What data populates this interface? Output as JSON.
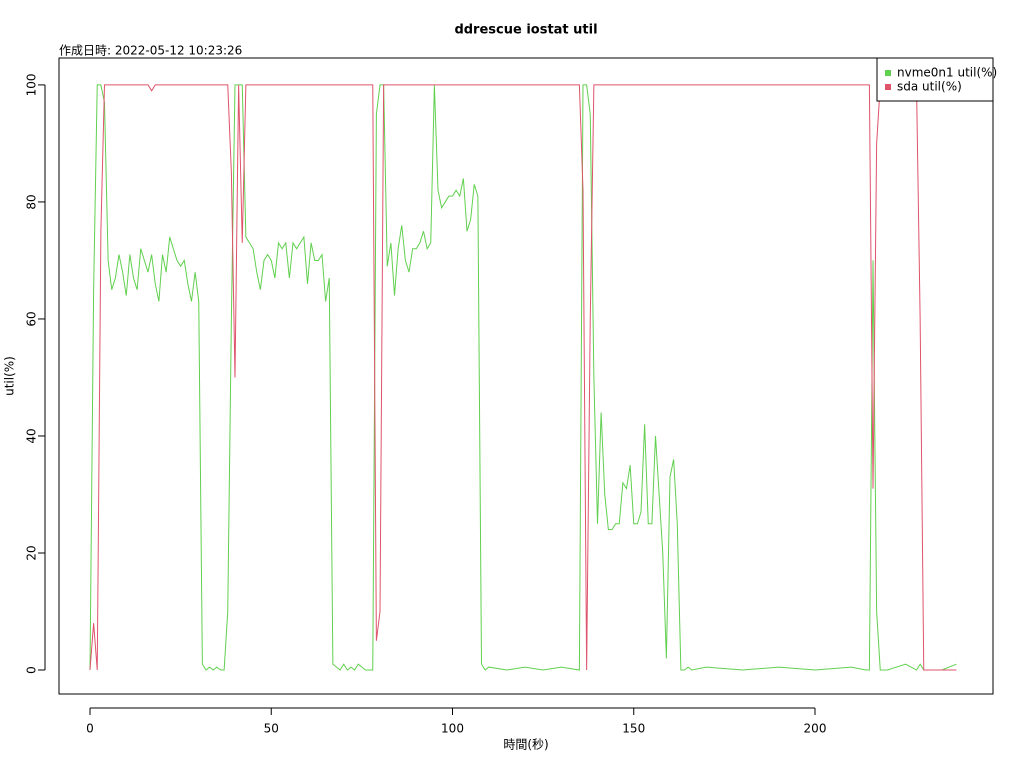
{
  "chart_data": {
    "type": "line",
    "title": "ddrescue iostat util",
    "subtitle": "作成日時: 2022-05-12 10:23:26",
    "x_label": "時間(秒)",
    "y_label": "util(%)",
    "xlim": [
      -8.55,
      249.1
    ],
    "ylim": [
      -4.1,
      104.6
    ],
    "xticks": [
      0,
      50,
      100,
      150,
      200
    ],
    "yticks": [
      0,
      20,
      40,
      60,
      80,
      100
    ],
    "grid": false,
    "legend": "topright",
    "x": [
      0,
      1,
      2,
      3,
      4,
      5,
      6,
      7,
      8,
      9,
      10,
      11,
      12,
      13,
      14,
      15,
      16,
      17,
      18,
      19,
      20,
      21,
      22,
      23,
      24,
      25,
      26,
      27,
      28,
      29,
      30,
      31,
      32,
      33,
      34,
      35,
      36,
      37,
      38,
      39,
      40,
      41,
      42,
      43,
      44,
      45,
      46,
      47,
      48,
      49,
      50,
      51,
      52,
      53,
      54,
      55,
      56,
      57,
      58,
      59,
      60,
      61,
      62,
      63,
      64,
      65,
      66,
      67,
      68,
      69,
      70,
      71,
      72,
      73,
      74,
      75,
      76,
      77,
      78,
      79,
      80,
      81,
      82,
      83,
      84,
      85,
      86,
      87,
      88,
      89,
      90,
      91,
      92,
      93,
      94,
      95,
      96,
      97,
      98,
      99,
      100,
      101,
      102,
      103,
      104,
      105,
      106,
      107,
      108,
      109,
      110,
      115,
      120,
      125,
      130,
      135,
      136,
      137,
      138,
      139,
      140,
      141,
      142,
      143,
      144,
      145,
      146,
      147,
      148,
      149,
      150,
      151,
      152,
      153,
      154,
      155,
      156,
      157,
      158,
      159,
      160,
      161,
      162,
      163,
      164,
      165,
      166,
      170,
      180,
      190,
      200,
      210,
      214,
      215,
      216,
      217,
      218,
      220,
      225,
      228,
      229,
      230,
      232,
      235,
      239
    ],
    "series": [
      {
        "name": "nvme0n1 util(%)",
        "color": "#61D04F",
        "values": [
          0,
          65,
          100,
          100,
          97,
          70,
          65,
          67,
          71,
          68,
          64,
          71,
          67,
          65,
          72,
          70,
          68,
          71,
          66,
          63,
          71,
          68,
          74,
          72,
          70,
          69,
          70,
          66,
          63,
          68,
          63,
          1,
          0,
          0.5,
          0,
          0.5,
          0,
          0,
          10,
          60,
          100,
          100,
          100,
          74,
          73,
          72,
          68,
          65,
          70,
          71,
          70,
          67,
          73,
          72,
          73,
          67,
          73,
          72,
          73,
          74,
          66,
          73,
          70,
          70,
          71,
          63,
          67,
          1,
          0.5,
          0,
          1,
          0,
          0.5,
          0,
          1,
          0.5,
          0,
          0,
          0,
          95,
          100,
          100,
          69,
          73,
          64,
          72,
          76,
          70,
          68,
          72,
          72,
          73,
          75,
          72,
          73,
          100,
          82,
          79,
          80,
          81,
          81,
          82,
          81,
          84,
          75,
          77,
          83,
          81,
          1,
          0,
          0.5,
          0,
          0.5,
          0,
          0.5,
          0,
          100,
          100,
          95,
          50,
          25,
          44,
          30,
          24,
          24,
          25,
          25,
          32,
          31,
          35,
          25,
          25,
          27,
          42,
          25,
          25,
          40,
          30,
          20,
          2,
          33,
          36,
          25,
          0,
          0,
          0.5,
          0,
          0.5,
          0,
          0.5,
          0,
          0.5,
          0,
          0,
          70,
          10,
          0,
          0,
          1,
          0,
          1,
          0,
          0,
          0,
          1
        ]
      },
      {
        "name": "sda util(%)",
        "color": "#DF536B",
        "values": [
          0,
          8,
          0,
          75,
          100,
          100,
          100,
          100,
          100,
          100,
          100,
          100,
          100,
          100,
          100,
          100,
          100,
          99,
          100,
          100,
          100,
          100,
          100,
          100,
          100,
          100,
          100,
          100,
          100,
          100,
          100,
          100,
          100,
          100,
          100,
          100,
          100,
          100,
          100,
          85,
          50,
          100,
          73,
          100,
          100,
          100,
          100,
          100,
          100,
          100,
          100,
          100,
          100,
          100,
          100,
          100,
          100,
          100,
          100,
          100,
          100,
          100,
          100,
          100,
          100,
          100,
          100,
          100,
          100,
          100,
          100,
          100,
          100,
          100,
          100,
          100,
          100,
          100,
          100,
          5,
          10,
          100,
          100,
          100,
          100,
          100,
          100,
          100,
          100,
          100,
          100,
          100,
          100,
          100,
          100,
          100,
          100,
          100,
          100,
          100,
          100,
          100,
          100,
          100,
          100,
          100,
          100,
          100,
          100,
          100,
          100,
          100,
          100,
          100,
          100,
          100,
          82,
          0,
          60,
          100,
          100,
          100,
          100,
          100,
          100,
          100,
          100,
          100,
          100,
          100,
          100,
          100,
          100,
          100,
          100,
          100,
          100,
          100,
          100,
          100,
          100,
          100,
          100,
          100,
          100,
          100,
          100,
          100,
          100,
          100,
          100,
          100,
          100,
          100,
          31,
          90,
          100,
          100,
          100,
          100,
          60,
          0,
          0,
          0,
          0
        ]
      }
    ]
  }
}
